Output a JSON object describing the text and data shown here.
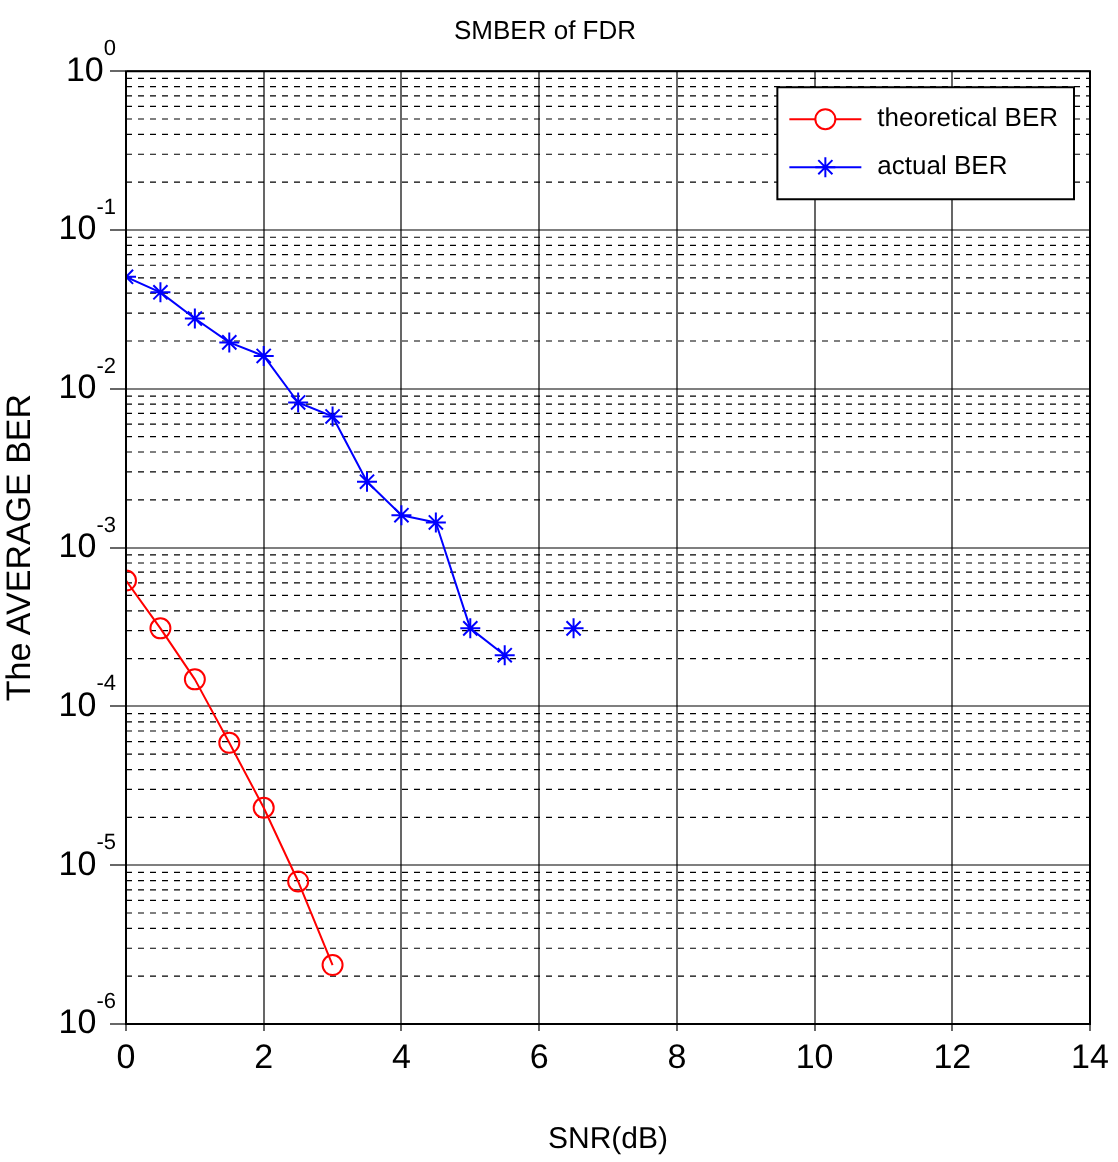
{
  "chart_data": {
    "type": "line",
    "title": "SMBER of FDR",
    "xlabel": "SNR(dB)",
    "ylabel": "The AVERAGE BER",
    "x": [
      0,
      0.5,
      1,
      1.5,
      2,
      2.5,
      3,
      3.5,
      4,
      4.5,
      5,
      5.5,
      6,
      6.5
    ],
    "series": [
      {
        "name": "theoretical BER",
        "color": "#ff0000",
        "marker": "circle",
        "x": [
          0,
          0.5,
          1,
          1.5,
          2,
          2.5,
          3
        ],
        "values": [
          0.00062,
          0.00031,
          0.000148,
          5.9e-05,
          2.3e-05,
          7.9e-06,
          2.35e-06
        ]
      },
      {
        "name": "actual BER",
        "color": "#0000ff",
        "marker": "cross",
        "values": [
          0.0507,
          0.0405,
          0.0277,
          0.0196,
          0.0161,
          0.0082,
          0.0067,
          0.0026,
          0.0016,
          0.00144,
          0.00031,
          0.00021,
          null,
          0.00031
        ]
      }
    ],
    "log": "y",
    "xlim": [
      0,
      14
    ],
    "xticks": [
      0,
      2,
      4,
      6,
      8,
      10,
      12,
      14
    ],
    "ylim": [
      1e-06,
      1
    ],
    "yticks": [
      {
        "value": 1e-06,
        "label": "10$^{-6}$"
      },
      {
        "value": 1e-05,
        "label": "10$^{-5}$"
      },
      {
        "value": 0.0001,
        "label": "10$^{-4}$"
      },
      {
        "value": 0.001,
        "label": "10$^{-3}$"
      },
      {
        "value": 0.01,
        "label": "10$^{-2}$"
      },
      {
        "value": 0.1,
        "label": "10$^{-1}$"
      },
      {
        "value": 1,
        "label": "10$^{0}$"
      }
    ],
    "grid": true,
    "legend": "top right",
    "line_style": "solid"
  }
}
